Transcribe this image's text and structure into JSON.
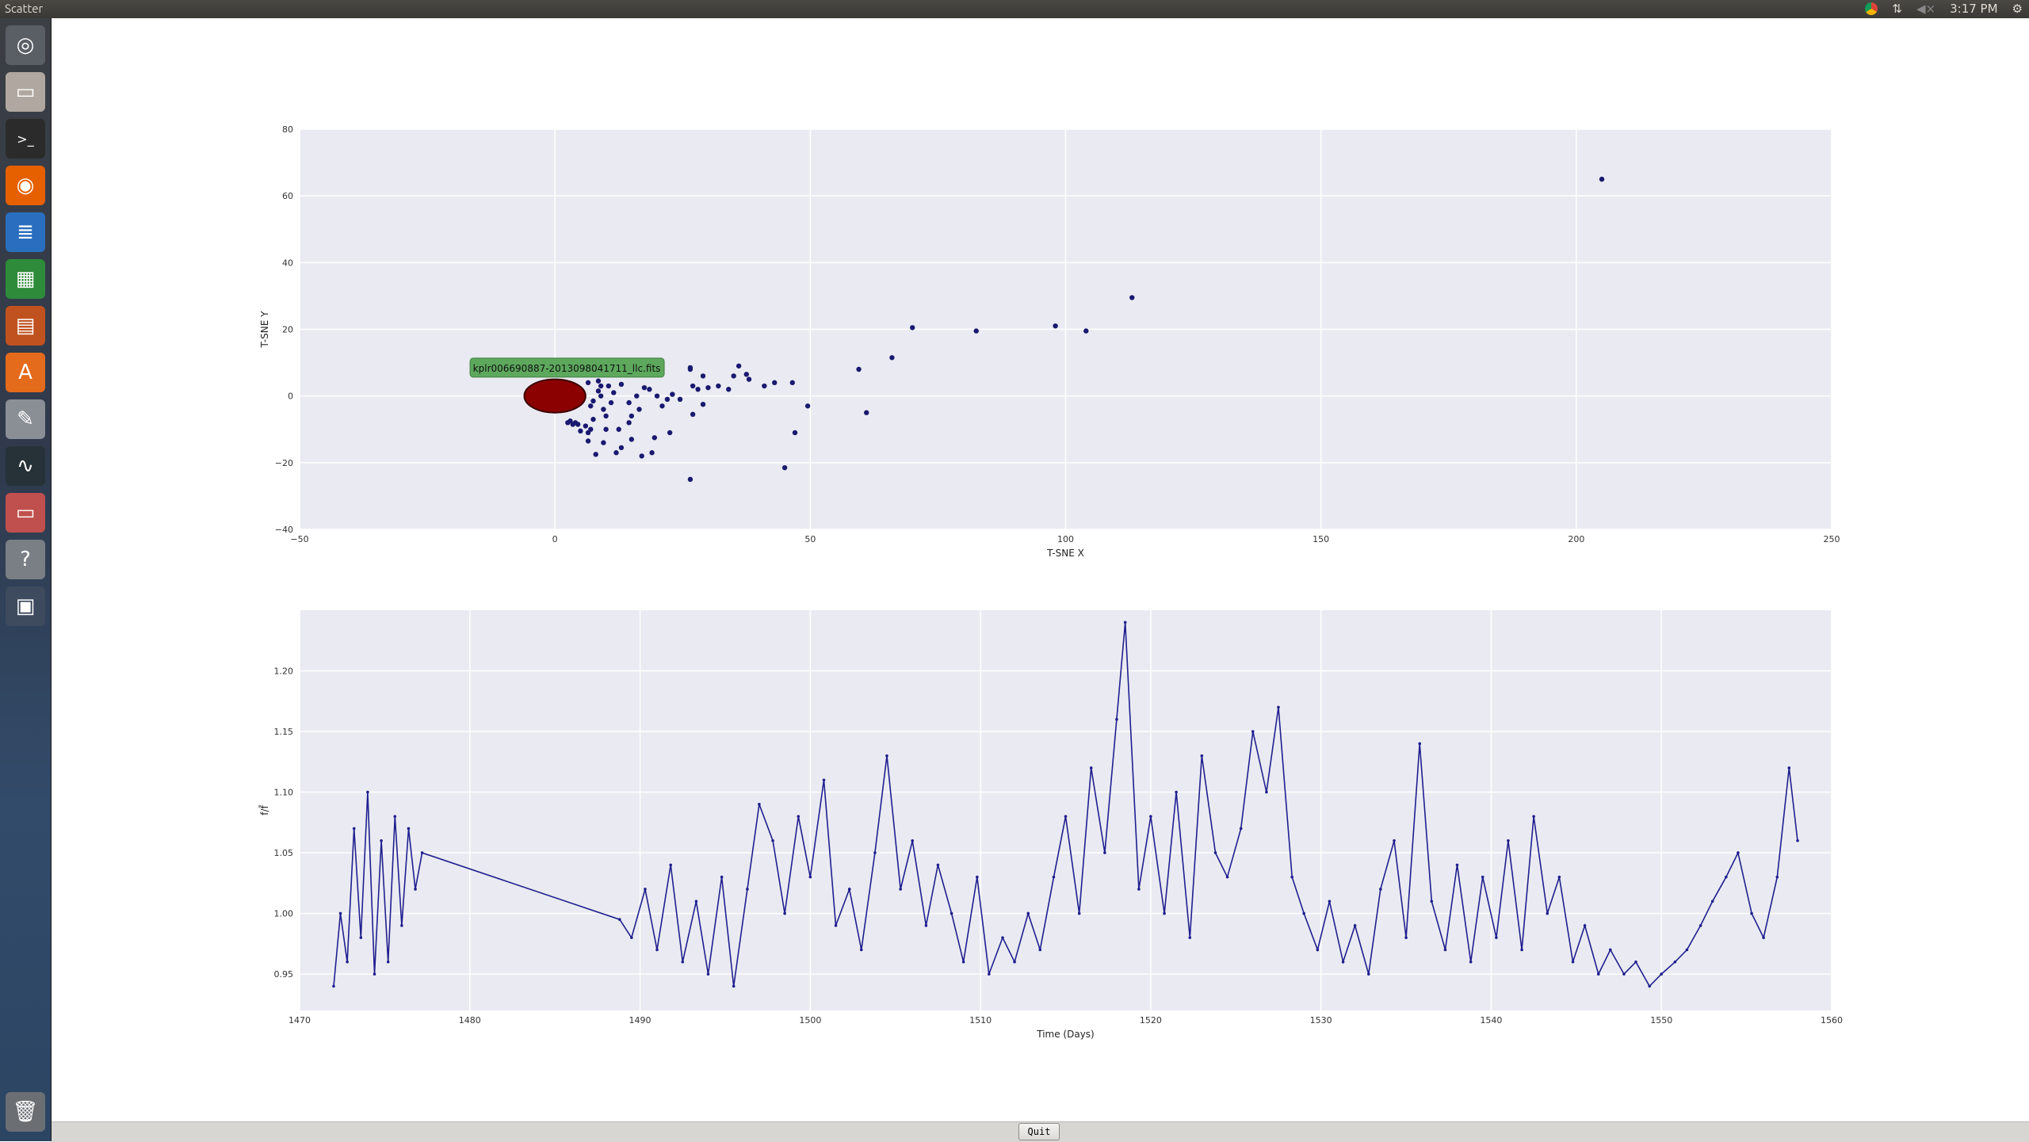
{
  "window": {
    "title": "Scatter"
  },
  "tray": {
    "clock": "3:17 PM"
  },
  "launcher": {
    "items": [
      {
        "name": "dash-home-icon",
        "bg": "#5a5f66",
        "glyph": "◎"
      },
      {
        "name": "files-icon",
        "bg": "#b0a8a0",
        "glyph": "▭"
      },
      {
        "name": "terminal-icon",
        "bg": "#2b2b2b",
        "glyph": ">_"
      },
      {
        "name": "firefox-icon",
        "bg": "#e66000",
        "glyph": "◉"
      },
      {
        "name": "writer-icon",
        "bg": "#2a6fbf",
        "glyph": "≣"
      },
      {
        "name": "calc-icon",
        "bg": "#2e8b3a",
        "glyph": "▦"
      },
      {
        "name": "impress-icon",
        "bg": "#c0521f",
        "glyph": "▤"
      },
      {
        "name": "software-center-icon",
        "bg": "#e46a1c",
        "glyph": "A"
      },
      {
        "name": "system-settings-icon",
        "bg": "#8a8f96",
        "glyph": "✎"
      },
      {
        "name": "system-monitor-icon",
        "bg": "#263238",
        "glyph": "∿"
      },
      {
        "name": "files-icon-2",
        "bg": "#c0504d",
        "glyph": "▭"
      },
      {
        "name": "help-icon",
        "bg": "#7a7f86",
        "glyph": "?"
      },
      {
        "name": "workspace-switcher-icon",
        "bg": "#3e4b5e",
        "glyph": "▣"
      }
    ],
    "trash": {
      "name": "trash-icon",
      "glyph": "🗑"
    }
  },
  "quit_button": {
    "label": "Quit"
  },
  "chart_data": [
    {
      "type": "scatter",
      "xlabel": "T-SNE X",
      "ylabel": "T-SNE Y",
      "xlim": [
        -50,
        250
      ],
      "ylim": [
        -40,
        80
      ],
      "xticks": [
        -50,
        0,
        50,
        100,
        150,
        200,
        250
      ],
      "yticks": [
        -40,
        -20,
        0,
        20,
        40,
        60,
        80
      ],
      "grid": true,
      "annotation": {
        "text": "kplr006690887-2013098041711_llc.fits",
        "x": 2,
        "y": 8.5,
        "color": "#5da85d"
      },
      "cluster": {
        "center": [
          0,
          0
        ],
        "rx": 6,
        "ry": 5,
        "color": "#8b0000"
      },
      "points": [
        [
          205,
          65
        ],
        [
          113,
          29.5
        ],
        [
          98,
          21
        ],
        [
          104,
          19.5
        ],
        [
          82.5,
          19.5
        ],
        [
          70,
          20.5
        ],
        [
          66,
          11.5
        ],
        [
          59.5,
          8
        ],
        [
          61,
          -5
        ],
        [
          49.5,
          -3
        ],
        [
          47,
          -11
        ],
        [
          45,
          -21.5
        ],
        [
          46.5,
          4
        ],
        [
          43,
          4
        ],
        [
          41,
          3
        ],
        [
          38,
          5
        ],
        [
          37.5,
          6.5
        ],
        [
          36,
          9
        ],
        [
          35,
          6
        ],
        [
          34,
          2
        ],
        [
          32,
          3
        ],
        [
          30,
          2.5
        ],
        [
          29,
          6
        ],
        [
          28,
          2
        ],
        [
          27,
          3
        ],
        [
          26.5,
          8
        ],
        [
          26.5,
          8.5
        ],
        [
          27,
          -5.5
        ],
        [
          29,
          -2.5
        ],
        [
          26.5,
          -25
        ],
        [
          22.5,
          -11
        ],
        [
          22,
          -1
        ],
        [
          20,
          0
        ],
        [
          19.5,
          -12.5
        ],
        [
          19,
          -17
        ],
        [
          17,
          -18
        ],
        [
          15,
          -13
        ],
        [
          14.5,
          -2
        ],
        [
          18.5,
          2
        ],
        [
          17.5,
          2.5
        ],
        [
          16.5,
          -4
        ],
        [
          14.5,
          -8
        ],
        [
          13,
          -15.5
        ],
        [
          12,
          -17
        ],
        [
          11,
          -2
        ],
        [
          10.5,
          3
        ],
        [
          10,
          -6
        ],
        [
          10,
          -10
        ],
        [
          8,
          -17.5
        ],
        [
          9.5,
          -4
        ],
        [
          9,
          0
        ],
        [
          9,
          3
        ],
        [
          8.5,
          1.5
        ],
        [
          7.5,
          -1.5
        ],
        [
          7,
          -3
        ],
        [
          7.5,
          -7
        ],
        [
          7,
          -10
        ],
        [
          6.5,
          -11
        ],
        [
          6.5,
          -13.5
        ],
        [
          6,
          -9
        ],
        [
          5,
          -10.5
        ],
        [
          4.5,
          -8.5
        ],
        [
          4,
          -8
        ],
        [
          3.5,
          -8.5
        ],
        [
          3,
          -7.5
        ],
        [
          2.5,
          -8
        ],
        [
          9.5,
          -14
        ],
        [
          12.5,
          -10
        ],
        [
          15,
          -6
        ],
        [
          21,
          -3
        ],
        [
          11.5,
          1
        ],
        [
          6.5,
          4
        ],
        [
          8.5,
          4.5
        ],
        [
          13,
          3.5
        ],
        [
          16,
          0
        ],
        [
          24.5,
          -1
        ],
        [
          23,
          0.5
        ]
      ],
      "point_color": "#191970"
    },
    {
      "type": "line",
      "xlabel": "Time (Days)",
      "ylabel": "f/f̄",
      "xlim": [
        1470,
        1560
      ],
      "ylim": [
        0.92,
        1.25
      ],
      "xticks": [
        1470,
        1480,
        1490,
        1500,
        1510,
        1520,
        1530,
        1540,
        1550,
        1560
      ],
      "yticks": [
        0.95,
        1.0,
        1.05,
        1.1,
        1.15,
        1.2
      ],
      "grid": true,
      "series": [
        {
          "color": "#1f1f8f",
          "x": [
            1472.0,
            1472.4,
            1472.8,
            1473.2,
            1473.6,
            1474.0,
            1474.4,
            1474.8,
            1475.2,
            1475.6,
            1476.0,
            1476.4,
            1476.8,
            1477.2,
            1488.8,
            1489.5,
            1490.3,
            1491.0,
            1491.8,
            1492.5,
            1493.3,
            1494.0,
            1494.8,
            1495.5,
            1496.3,
            1497.0,
            1497.8,
            1498.5,
            1499.3,
            1500.0,
            1500.8,
            1501.5,
            1502.3,
            1503.0,
            1503.8,
            1504.5,
            1505.3,
            1506.0,
            1506.8,
            1507.5,
            1508.3,
            1509.0,
            1509.8,
            1510.5,
            1511.3,
            1512.0,
            1512.8,
            1513.5,
            1514.3,
            1515.0,
            1515.8,
            1516.5,
            1517.3,
            1518.0,
            1518.5,
            1519.3,
            1520.0,
            1520.8,
            1521.5,
            1522.3,
            1523.0,
            1523.8,
            1524.5,
            1525.3,
            1526.0,
            1526.8,
            1527.5,
            1528.3,
            1529.0,
            1529.8,
            1530.5,
            1531.3,
            1532.0,
            1532.8,
            1533.5,
            1534.3,
            1535.0,
            1535.8,
            1536.5,
            1537.3,
            1538.0,
            1538.8,
            1539.5,
            1540.3,
            1541.0,
            1541.8,
            1542.5,
            1543.3,
            1544.0,
            1544.8,
            1545.5,
            1546.3,
            1547.0,
            1547.8,
            1548.5,
            1549.3,
            1550.0,
            1550.8,
            1551.5,
            1552.3,
            1553.0,
            1553.8,
            1554.5,
            1555.3,
            1556.0,
            1556.8,
            1557.5,
            1558.0
          ],
          "y": [
            0.94,
            1.0,
            0.96,
            1.07,
            0.98,
            1.1,
            0.95,
            1.06,
            0.96,
            1.08,
            0.99,
            1.07,
            1.02,
            1.05,
            0.995,
            0.98,
            1.02,
            0.97,
            1.04,
            0.96,
            1.01,
            0.95,
            1.03,
            0.94,
            1.02,
            1.09,
            1.06,
            1.0,
            1.08,
            1.03,
            1.11,
            0.99,
            1.02,
            0.97,
            1.05,
            1.13,
            1.02,
            1.06,
            0.99,
            1.04,
            1.0,
            0.96,
            1.03,
            0.95,
            0.98,
            0.96,
            1.0,
            0.97,
            1.03,
            1.08,
            1.0,
            1.12,
            1.05,
            1.16,
            1.24,
            1.02,
            1.08,
            1.0,
            1.1,
            0.98,
            1.13,
            1.05,
            1.03,
            1.07,
            1.15,
            1.1,
            1.17,
            1.03,
            1.0,
            0.97,
            1.01,
            0.96,
            0.99,
            0.95,
            1.02,
            1.06,
            0.98,
            1.14,
            1.01,
            0.97,
            1.04,
            0.96,
            1.03,
            0.98,
            1.06,
            0.97,
            1.08,
            1.0,
            1.03,
            0.96,
            0.99,
            0.95,
            0.97,
            0.95,
            0.96,
            0.94,
            0.95,
            0.96,
            0.97,
            0.99,
            1.01,
            1.03,
            1.05,
            1.0,
            0.98,
            1.03,
            1.12,
            1.06
          ]
        }
      ]
    }
  ]
}
